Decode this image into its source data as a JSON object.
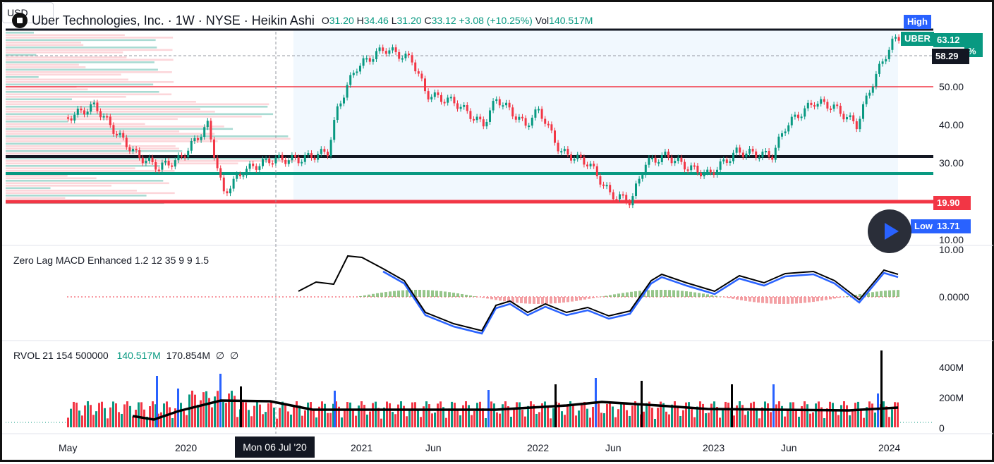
{
  "header": {
    "title": "Uber Technologies, Inc. · 1W · NYSE · Heikin Ashi",
    "open_label": "O",
    "open": "31.20",
    "high_label": "H",
    "high": "34.46",
    "low_label": "L",
    "low": "31.20",
    "close_label": "C",
    "close": "33.12",
    "change": "+3.08 (+10.25%)",
    "vol_label": "Vol",
    "volume": "140.517M"
  },
  "currency": "USD",
  "price_tags": {
    "high_label": "High",
    "symbol": "UBER",
    "last": "63.12",
    "crosshair": "58.29",
    "pct_fragment": "%",
    "support_red": "19.90",
    "low_label": "Low",
    "low": "13.71"
  },
  "price_axis": [
    "50.00",
    "40.00",
    "30.00",
    "20.00",
    "10.00"
  ],
  "macd": {
    "title": "Zero Lag MACD Enhanced 1.2 12 35 9 9 1.5",
    "axis": [
      "10.00",
      "0.0000"
    ]
  },
  "rvol": {
    "title": "RVOL 21 154 500000",
    "v1": "140.517M",
    "v2": "170.854M",
    "v3": "∅",
    "v4": "∅",
    "axis": [
      "400M",
      "200M",
      "0"
    ]
  },
  "time_axis": [
    "May",
    "2020",
    "2021",
    "Jun",
    "2022",
    "Jun",
    "2023",
    "Jun",
    "2024"
  ],
  "crosshair_date": "Mon 06 Jul '20",
  "colors": {
    "up": "#089981",
    "down": "#f23645",
    "macd_fast": "#000000",
    "macd_signal": "#2962ff",
    "accent": "#2962ff"
  }
}
